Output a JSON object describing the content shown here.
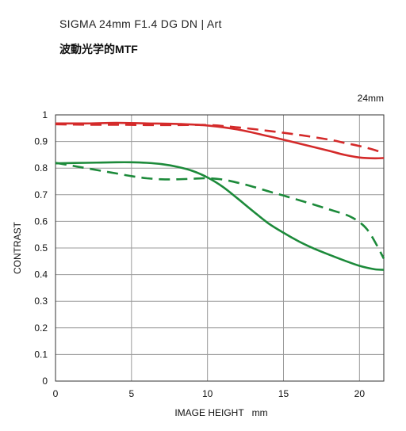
{
  "header": {
    "title": "SIGMA 24mm F1.4 DG DN | Art",
    "subtitle": "波動光学的MTF"
  },
  "chart_data": {
    "type": "line",
    "focal_label": "24mm",
    "xlabel": "IMAGE HEIGHT   mm",
    "ylabel": "CONTRAST",
    "xlim": [
      0,
      21.6
    ],
    "ylim": [
      0,
      1
    ],
    "xticks": [
      0,
      5,
      10,
      15,
      20
    ],
    "yticks": [
      0,
      0.1,
      0.2,
      0.3,
      0.4,
      0.5,
      0.6,
      0.7,
      0.8,
      0.9,
      1
    ],
    "ytick_labels": [
      "0",
      "0.1",
      "0.2",
      "0.3",
      "0.4",
      "0.5",
      "0.6",
      "0.7",
      "0.8",
      "0.9",
      "1"
    ],
    "grid": true,
    "series": [
      {
        "color": "#d42a2a",
        "dash": false,
        "x": [
          0,
          2,
          4,
          6,
          8,
          10,
          12,
          14,
          16,
          18,
          19,
          20,
          21,
          21.6
        ],
        "y": [
          0.968,
          0.968,
          0.97,
          0.968,
          0.966,
          0.96,
          0.945,
          0.92,
          0.893,
          0.865,
          0.85,
          0.84,
          0.837,
          0.838
        ]
      },
      {
        "color": "#d42a2a",
        "dash": true,
        "x": [
          0,
          2,
          4,
          6,
          8,
          10,
          12,
          14,
          16,
          18,
          19,
          20,
          21,
          21.6
        ],
        "y": [
          0.965,
          0.963,
          0.963,
          0.962,
          0.962,
          0.962,
          0.953,
          0.94,
          0.925,
          0.907,
          0.895,
          0.883,
          0.868,
          0.856
        ]
      },
      {
        "color": "#1c8a3a",
        "dash": false,
        "x": [
          0,
          2,
          4,
          5,
          6,
          7,
          8,
          9,
          10,
          11,
          12,
          13,
          14,
          15,
          16,
          17,
          18,
          19,
          20,
          21,
          21.6
        ],
        "y": [
          0.818,
          0.82,
          0.822,
          0.822,
          0.82,
          0.815,
          0.805,
          0.79,
          0.765,
          0.73,
          0.685,
          0.638,
          0.593,
          0.557,
          0.525,
          0.498,
          0.475,
          0.453,
          0.433,
          0.42,
          0.418
        ]
      },
      {
        "color": "#1c8a3a",
        "dash": true,
        "x": [
          0,
          1,
          2,
          3,
          4,
          5,
          6,
          7,
          8,
          9,
          10,
          11,
          12,
          13,
          14,
          15,
          16,
          17,
          18,
          19,
          19.5,
          20,
          20.5,
          21,
          21.6
        ],
        "y": [
          0.82,
          0.81,
          0.8,
          0.79,
          0.78,
          0.77,
          0.762,
          0.758,
          0.758,
          0.76,
          0.762,
          0.757,
          0.745,
          0.73,
          0.713,
          0.697,
          0.68,
          0.663,
          0.645,
          0.627,
          0.615,
          0.597,
          0.57,
          0.525,
          0.46
        ]
      }
    ]
  }
}
